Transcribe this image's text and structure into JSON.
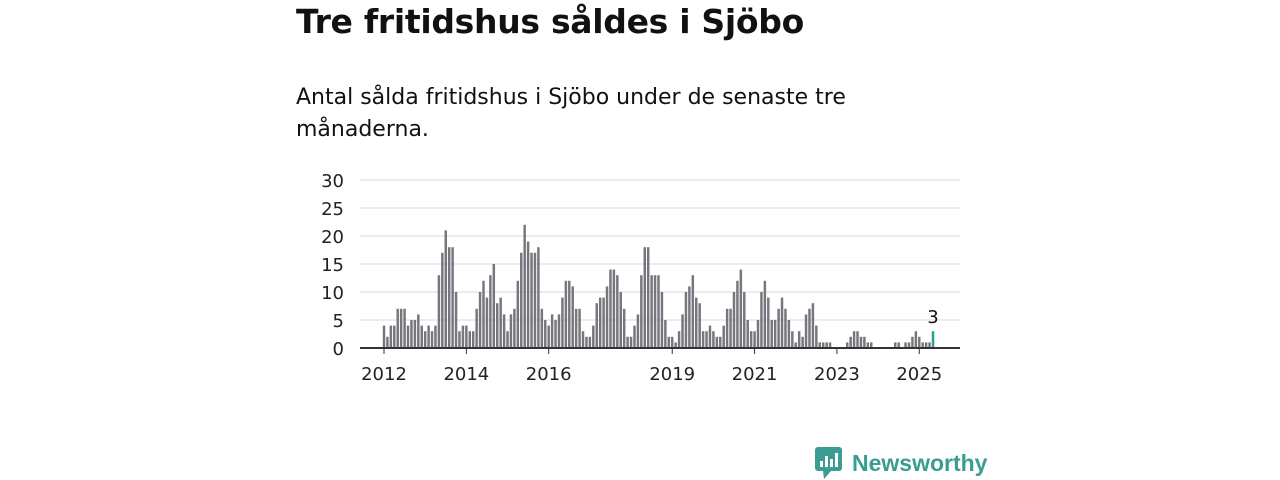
{
  "header": {
    "title": "Tre fritidshus såldes i Sjöbo",
    "subtitle": "Antal sålda fritidshus i Sjöbo under de senaste tre månaderna."
  },
  "brand": {
    "name": "Newsworthy",
    "color": "#3a9c92",
    "icon": "bar-chart-logo-icon"
  },
  "colors": {
    "bars": "#77767d",
    "highlight": "#2aa198",
    "grid": "#d9d9d9",
    "axis": "#333333"
  },
  "chart_data": {
    "type": "bar",
    "x_start": "2012-01",
    "x_end": "2025-05",
    "ylim": [
      0,
      30
    ],
    "yticks": [
      "0",
      "5",
      "10",
      "15",
      "20",
      "25",
      "30"
    ],
    "xticks": [
      "2012",
      "2014",
      "2016",
      "2019",
      "2021",
      "2023",
      "2025"
    ],
    "xlabel": "",
    "ylabel": "",
    "grid": true,
    "values": [
      4,
      2,
      4,
      4,
      7,
      7,
      7,
      4,
      5,
      5,
      6,
      4,
      3,
      4,
      3,
      4,
      13,
      17,
      21,
      18,
      18,
      10,
      3,
      4,
      4,
      3,
      3,
      7,
      10,
      12,
      9,
      13,
      15,
      8,
      9,
      6,
      3,
      6,
      7,
      12,
      17,
      22,
      19,
      17,
      17,
      18,
      7,
      5,
      4,
      6,
      5,
      6,
      9,
      12,
      12,
      11,
      7,
      7,
      3,
      2,
      2,
      4,
      8,
      9,
      9,
      11,
      14,
      14,
      13,
      10,
      7,
      2,
      2,
      4,
      6,
      13,
      18,
      18,
      13,
      13,
      13,
      10,
      5,
      2,
      2,
      1,
      3,
      6,
      10,
      11,
      13,
      9,
      8,
      3,
      3,
      4,
      3,
      2,
      2,
      4,
      7,
      7,
      10,
      12,
      14,
      10,
      5,
      3,
      3,
      5,
      10,
      12,
      9,
      5,
      5,
      7,
      9,
      7,
      5,
      3,
      1,
      3,
      2,
      6,
      7,
      8,
      4,
      1,
      1,
      1,
      1,
      0,
      0,
      0,
      0,
      1,
      2,
      3,
      3,
      2,
      2,
      1,
      1,
      0,
      0,
      0,
      0,
      0,
      0,
      1,
      1,
      0,
      1,
      1,
      2,
      3,
      2,
      1,
      1,
      1,
      3
    ],
    "highlight_label": "3"
  }
}
